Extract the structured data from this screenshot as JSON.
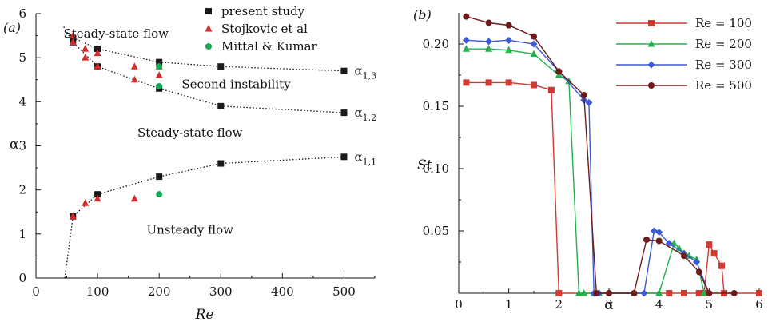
{
  "chart_data": [
    {
      "type": "scatter",
      "panel_label": "(a)",
      "xlabel": "Re",
      "ylabel": "α",
      "xlim": [
        0,
        550
      ],
      "ylim": [
        0,
        6
      ],
      "xticks": [
        "0",
        "100",
        "200",
        "300",
        "400",
        "500"
      ],
      "yticks": [
        "0",
        "1",
        "2",
        "3",
        "4",
        "5",
        "6"
      ],
      "legend_position": "top-right",
      "series": [
        {
          "name": "present study",
          "marker": "square",
          "color": "#1a1a1a",
          "points": [
            [
              60,
              1.4
            ],
            [
              100,
              1.9
            ],
            [
              200,
              2.3
            ],
            [
              300,
              2.6
            ],
            [
              500,
              2.75
            ],
            [
              60,
              5.35
            ],
            [
              100,
              4.8
            ],
            [
              200,
              4.3
            ],
            [
              300,
              3.9
            ],
            [
              500,
              3.75
            ],
            [
              60,
              5.45
            ],
            [
              100,
              5.2
            ],
            [
              200,
              4.9
            ],
            [
              300,
              4.8
            ],
            [
              500,
              4.7
            ]
          ]
        },
        {
          "name": "Stojkovic et al",
          "marker": "triangle",
          "color": "#d62b2b",
          "points": [
            [
              60,
              1.4
            ],
            [
              80,
              1.7
            ],
            [
              100,
              1.8
            ],
            [
              160,
              1.8
            ],
            [
              60,
              5.35
            ],
            [
              80,
              5.0
            ],
            [
              100,
              4.8
            ],
            [
              160,
              4.5
            ],
            [
              200,
              4.6
            ],
            [
              60,
              5.5
            ],
            [
              80,
              5.2
            ],
            [
              100,
              5.1
            ],
            [
              160,
              4.8
            ],
            [
              200,
              4.8
            ]
          ]
        },
        {
          "name": "Mittal & Kumar",
          "marker": "circle",
          "color": "#19a855",
          "points": [
            [
              200,
              1.9
            ],
            [
              200,
              4.35
            ],
            [
              200,
              4.8
            ]
          ]
        }
      ],
      "boundary_curves": [
        {
          "label": "α1,1",
          "points": [
            [
              47,
              0
            ],
            [
              60,
              1.4
            ],
            [
              100,
              1.9
            ],
            [
              200,
              2.3
            ],
            [
              300,
              2.6
            ],
            [
              500,
              2.75
            ]
          ]
        },
        {
          "label": "α1,2",
          "points": [
            [
              45,
              5.7
            ],
            [
              60,
              5.35
            ],
            [
              100,
              4.8
            ],
            [
              200,
              4.3
            ],
            [
              300,
              3.9
            ],
            [
              500,
              3.75
            ]
          ]
        },
        {
          "label": "α1,3",
          "points": [
            [
              60,
              5.45
            ],
            [
              100,
              5.2
            ],
            [
              200,
              4.9
            ],
            [
              300,
              4.8
            ],
            [
              500,
              4.7
            ]
          ]
        }
      ],
      "curve_labels": [
        {
          "base": "α",
          "sub": "1,1",
          "re": 500,
          "alpha": 2.75
        },
        {
          "base": "α",
          "sub": "1,2",
          "re": 500,
          "alpha": 3.75
        },
        {
          "base": "α",
          "sub": "1,3",
          "re": 500,
          "alpha": 4.7
        }
      ],
      "annotations": [
        {
          "text": "Steady-state flow",
          "re": 130,
          "alpha": 5.55
        },
        {
          "text": "Second instability",
          "re": 325,
          "alpha": 4.4
        },
        {
          "text": "Steady-state flow",
          "re": 250,
          "alpha": 3.3
        },
        {
          "text": "Unsteady flow",
          "re": 250,
          "alpha": 1.1
        }
      ]
    },
    {
      "type": "line",
      "panel_label": "(b)",
      "xlabel": "α",
      "ylabel": "St",
      "xlim": [
        0,
        6
      ],
      "ylim": [
        0,
        0.225
      ],
      "xticks": [
        "0",
        "1",
        "2",
        "3",
        "4",
        "5",
        "6"
      ],
      "yticks": [
        "0.05",
        "0.10",
        "0.15",
        "0.20"
      ],
      "legend_position": "top-right",
      "series": [
        {
          "name": "Re = 100",
          "marker": "square",
          "color": "#d03a32",
          "x": [
            0.15,
            0.6,
            1.0,
            1.5,
            1.85,
            2.0,
            4.2,
            4.5,
            4.8,
            4.9,
            5.0,
            5.1,
            5.25,
            5.3,
            6.0
          ],
          "y": [
            0.169,
            0.169,
            0.169,
            0.167,
            0.163,
            0,
            0,
            0,
            0,
            0,
            0.039,
            0.032,
            0.022,
            0,
            0
          ]
        },
        {
          "name": "Re = 200",
          "marker": "triangle",
          "color": "#22b24c",
          "x": [
            0.15,
            0.6,
            1.0,
            1.5,
            2.0,
            2.2,
            2.4,
            2.5,
            2.7,
            2.8,
            3.5,
            4.0,
            4.3,
            4.4,
            4.6,
            4.75,
            4.9
          ],
          "y": [
            0.196,
            0.196,
            0.195,
            0.192,
            0.175,
            0.17,
            0,
            0,
            0,
            0,
            0,
            0,
            0.04,
            0.036,
            0.03,
            0.027,
            0
          ]
        },
        {
          "name": "Re = 300",
          "marker": "diamond",
          "color": "#3a5ad6",
          "x": [
            0.15,
            0.6,
            1.0,
            1.5,
            2.0,
            2.5,
            2.6,
            2.7,
            2.8,
            3.5,
            3.7,
            3.9,
            4.0,
            4.2,
            4.5,
            4.75,
            5.0
          ],
          "y": [
            0.203,
            0.202,
            0.203,
            0.2,
            0.178,
            0.155,
            0.153,
            0,
            0,
            0,
            0,
            0.05,
            0.049,
            0.04,
            0.032,
            0.025,
            0
          ]
        },
        {
          "name": "Re = 500",
          "marker": "circle",
          "color": "#6e1a1a",
          "x": [
            0.15,
            0.6,
            1.0,
            1.5,
            2.0,
            2.5,
            2.75,
            3.0,
            3.5,
            3.75,
            4.0,
            4.5,
            4.8,
            5.0,
            5.5
          ],
          "y": [
            0.222,
            0.217,
            0.215,
            0.206,
            0.178,
            0.159,
            0,
            0,
            0,
            0.043,
            0.042,
            0.03,
            0.017,
            0,
            0
          ]
        }
      ]
    }
  ]
}
